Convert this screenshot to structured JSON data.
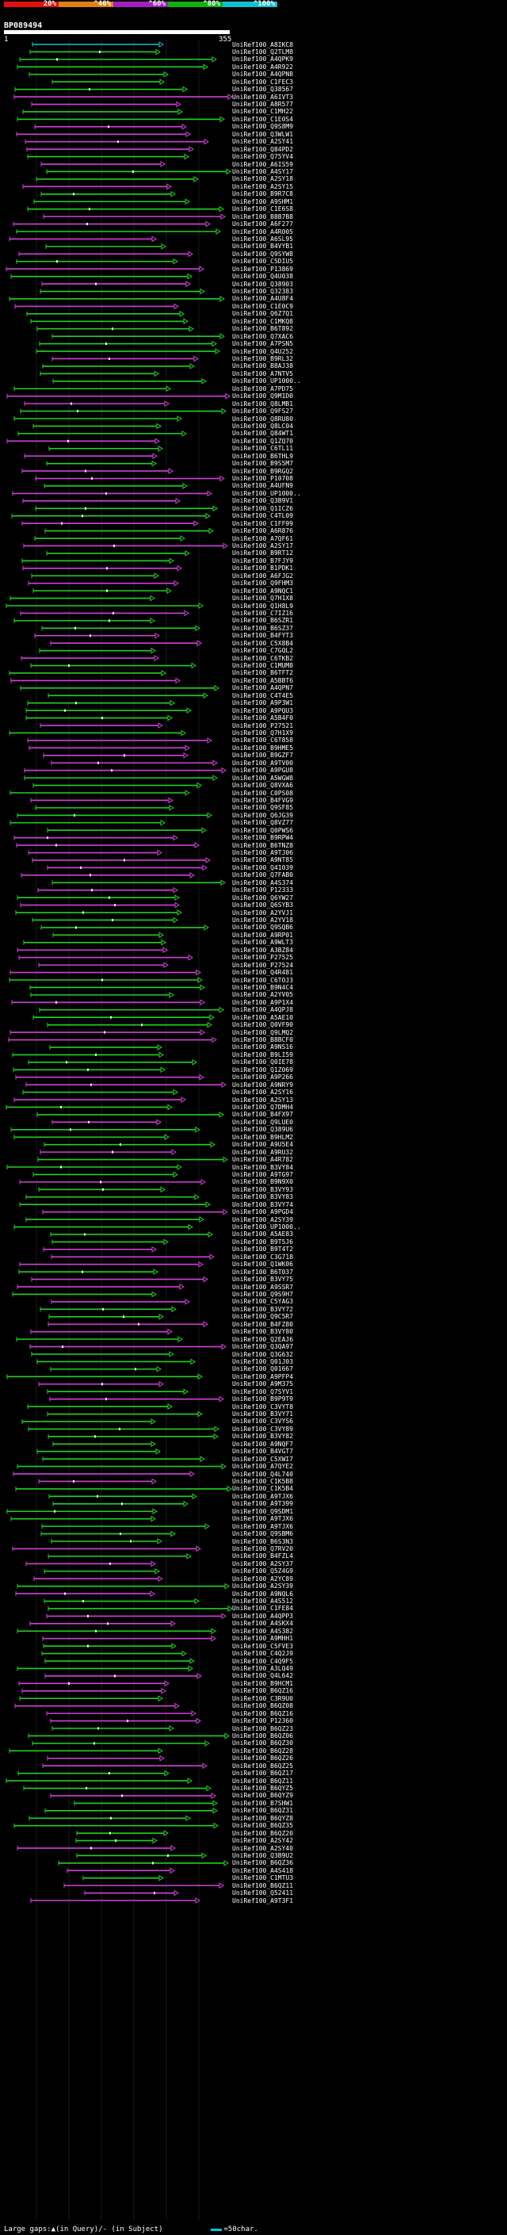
{
  "scale": {
    "labels": [
      "20%",
      "^40%",
      "^60%",
      "^80%",
      "^100%"
    ],
    "colors": [
      "#e01010",
      "#e08010",
      "#a020c0",
      "#10b010",
      "#10c0d0"
    ]
  },
  "query": {
    "id": "BP089494",
    "start": "1",
    "end": "355"
  },
  "hits": [
    "UniRef100_A8IKC8",
    "UniRef100_Q2TLM8",
    "UniRef100_A4QPK9",
    "UniRef100_A4R922",
    "UniRef100_A4QPN8",
    "UniRef100_C1FEC3",
    "UniRef100_Q38567",
    "UniRef100_A6IVT3",
    "UniRef100_A8R577",
    "UniRef100_C1MH22",
    "UniRef100_C1E0S4",
    "UniRef100_Q9S8M9",
    "UniRef100_Q3WLW1",
    "UniRef100_A2SY41",
    "UniRef100_Q84PD2",
    "UniRef100_Q75YV4",
    "UniRef100_A6IS59",
    "UniRef100_A4SY17",
    "UniRef100_A2SY18",
    "UniRef100_A2SY15",
    "UniRef100_B9R7C8",
    "UniRef100_A9SHM1",
    "UniRef100_C1E6S8",
    "UniRef100_B8B7B8",
    "UniRef100_A6F277",
    "UniRef100_A4R005",
    "UniRef100_A6SL95",
    "UniRef100_B4VYB1",
    "UniRef100_Q9SYW8",
    "UniRef100_C5DIU5",
    "UniRef100_P13869",
    "UniRef100_Q4U038",
    "UniRef100_Q38903",
    "UniRef100_Q32383",
    "UniRef100_A4U8F4",
    "UniRef100_C1E0C9",
    "UniRef100_Q6Z7Q1",
    "UniRef100_C1MKQ8",
    "UniRef100_B6T892",
    "UniRef100_Q7XAC6",
    "UniRef100_A7PSN5",
    "UniRef100_Q4U252",
    "UniRef100_B9RL32",
    "UniRef100_B8AJ38",
    "UniRef100_A7NTV5",
    "UniRef100_UP1000..",
    "UniRef100_A7PD75",
    "UniRef100_Q9M1D0",
    "UniRef100_Q8LMB1",
    "UniRef100_Q9FS27",
    "UniRef100_Q8RU80",
    "UniRef100_Q8LC04",
    "UniRef100_Q84WT1",
    "UniRef100_Q1ZQ70",
    "UniRef100_C6TL11",
    "UniRef100_B6THL9",
    "UniRef100_B9S5M7",
    "UniRef100_B9RGQ2",
    "UniRef100_P10708",
    "UniRef100_A4UFN9",
    "UniRef100_UP1000..",
    "UniRef100_Q3B9V1",
    "UniRef100_Q1ICZ6",
    "UniRef100_C4TL09",
    "UniRef100_C1FF99",
    "UniRef100_A6R876",
    "UniRef100_A7QF61",
    "UniRef100_A2SY17",
    "UniRef100_B9RT12",
    "UniRef100_B7FJY9",
    "UniRef100_B1PDK1",
    "UniRef100_A6FJG2",
    "UniRef100_Q9FHM3",
    "UniRef100_A9NQC1",
    "UniRef100_Q7H1X8",
    "UniRef100_Q1H8L9",
    "UniRef100_C7IZ16",
    "UniRef100_B6SZR1",
    "UniRef100_B6SZ37",
    "UniRef100_B4FYT3",
    "UniRef100_C5X8B4",
    "UniRef100_C7GQL2",
    "UniRef100_C6TKB2",
    "UniRef100_C1MUM8",
    "UniRef100_B6TFT2",
    "UniRef100_A5BBT6",
    "UniRef100_A4QPN7",
    "UniRef100_C4T4E5",
    "UniRef100_A9P3W1",
    "UniRef100_A9PQU3",
    "UniRef100_A5B4F0",
    "UniRef100_P27521",
    "UniRef100_Q7H1X9",
    "UniRef100_C6T858",
    "UniRef100_B9HME5",
    "UniRef100_B9GZF7",
    "UniRef100_A9TV00",
    "UniRef100_A9PGU8",
    "UniRef100_A5WGW8",
    "UniRef100_Q8VXA6",
    "UniRef100_C0PS08",
    "UniRef100_B4FVG9",
    "UniRef100_Q9SF85",
    "UniRef100_Q6JG39",
    "UniRef100_Q8VZ77",
    "UniRef100_Q0PWS6",
    "UniRef100_B9RPW4",
    "UniRef100_B6TNZ8",
    "UniRef100_A9TJ06",
    "UniRef100_A9NT85",
    "UniRef100_Q41039",
    "UniRef100_Q7FAB0",
    "UniRef100_A4S374",
    "UniRef100_P12333",
    "UniRef100_Q6YW27",
    "UniRef100_Q6SYB3",
    "UniRef100_A2YVJ1",
    "UniRef100_A2YV18",
    "UniRef100_Q9SQB6",
    "UniRef100_A9RP01",
    "UniRef100_A9WLT3",
    "UniRef100_A3BZ84",
    "UniRef100_P27525",
    "UniRef100_P27524",
    "UniRef100_Q4R481",
    "UniRef100_C6TOJ3",
    "UniRef100_B9N4C4",
    "UniRef100_A2YV05",
    "UniRef100_A9P1X4",
    "UniRef100_A4QPJ8",
    "UniRef100_A5AE10",
    "UniRef100_Q0VF90",
    "UniRef100_Q9LMQ2",
    "UniRef100_B8BCF0",
    "UniRef100_A9NS16",
    "UniRef100_B9LI59",
    "UniRef100_Q0IE78",
    "UniRef100_Q1Z069",
    "UniRef100_A9P266",
    "UniRef100_A9NRY9",
    "UniRef100_A2SY16",
    "UniRef100_A2SY13",
    "UniRef100_Q7DMH4",
    "UniRef100_B4FX97",
    "UniRef100_Q9LUE0",
    "UniRef100_Q389U6",
    "UniRef100_B9HLM2",
    "UniRef100_A9U5E4",
    "UniRef100_A9RU32",
    "UniRef100_A4R782",
    "UniRef100_B3VY84",
    "UniRef100_A9TG97",
    "UniRef100_B9N9X0",
    "UniRef100_B3VY93",
    "UniRef100_B3VY83",
    "UniRef100_B3VY74",
    "UniRef100_A9PGD4",
    "UniRef100_A2SY39",
    "UniRef100_UP1000..",
    "UniRef100_A5AE83",
    "UniRef100_B9T5J6",
    "UniRef100_B9T4T2",
    "UniRef100_C3G718",
    "UniRef100_Q1WK06",
    "UniRef100_B6T037",
    "UniRef100_B3VY75",
    "UniRef100_A9SSR7",
    "UniRef100_Q9S9H7",
    "UniRef100_C5YAG3",
    "UniRef100_B3VY72",
    "UniRef100_Q9C5R7",
    "UniRef100_B4FZ80",
    "UniRef100_B3VY80",
    "UniRef100_Q2EAJ6",
    "UniRef100_Q3QA97",
    "UniRef100_Q3G632",
    "UniRef100_Q01J03",
    "UniRef100_Q01667",
    "UniRef100_A9PFP4",
    "UniRef100_A9M375",
    "UniRef100_Q7SYV1",
    "UniRef100_B9P9T9",
    "UniRef100_C3VYT8",
    "UniRef100_B3VY71",
    "UniRef100_C3VYS6",
    "UniRef100_C3VY89",
    "UniRef100_B3VY82",
    "UniRef100_A9NQF7",
    "UniRef100_B4VGT7",
    "UniRef100_C5XWI7",
    "UniRef100_A7QYE2",
    "UniRef100_Q4L740",
    "UniRef100_C1K5B8",
    "UniRef100_C1K5B4",
    "UniRef100_A9TJX6",
    "UniRef100_A9T399",
    "UniRef100_Q9SDM1",
    "UniRef100_A9TJX6",
    "UniRef100_A9TJX6",
    "UniRef100_Q9SBM6",
    "UniRef100_B6S3N3",
    "UniRef100_Q7RV20",
    "UniRef100_B4FZL4",
    "UniRef100_A2SY37",
    "UniRef100_Q5Z4G9",
    "UniRef100_A2YC89",
    "UniRef100_A2SY39",
    "UniRef100_A9NQL6",
    "UniRef100_A4S512",
    "UniRef100_C1FE84",
    "UniRef100_A4QPP3",
    "UniRef100_A4SKX4",
    "UniRef100_A4S382",
    "UniRef100_A9MHH1",
    "UniRef100_C5FVE3",
    "UniRef100_C4Q2J9",
    "UniRef100_C4Q9F5",
    "UniRef100_A3LQ49",
    "UniRef100_Q4L642",
    "UniRef100_B9HCM1",
    "UniRef100_B6QZ16",
    "UniRef100_C3R9U0",
    "UniRef100_B6QZ08",
    "UniRef100_B6QZ16",
    "UniRef100_P12360",
    "UniRef100_B6QZ23",
    "UniRef100_B6QZ06",
    "UniRef100_B6QZ30",
    "UniRef100_B6QZ28",
    "UniRef100_B6QZ26",
    "UniRef100_B6QZ25",
    "UniRef100_B6QZ17",
    "UniRef100_B6QZ11",
    "UniRef100_B6QYZ5",
    "UniRef100_B6QYZ9",
    "UniRef100_B7SHW1",
    "UniRef100_B6QZ31",
    "UniRef100_B6QYZ8",
    "UniRef100_B6QZ35",
    "UniRef100_B6QZ20",
    "UniRef100_A2SY42",
    "UniRef100_A2SY40",
    "UniRef100_Q3B9U2",
    "UniRef100_B6QZ36",
    "UniRef100_A4S418",
    "UniRef100_C1MTU3",
    "UniRef100_B6QZ11",
    "UniRef100_Q52411",
    "UniRef100_A9T3F1"
  ],
  "legend": {
    "prefix": "Large gaps:",
    "query_marker": "▲",
    "query_text": "(in Query)",
    "subject_text": "/- (in Subject)",
    "scale_text": "=50char."
  }
}
